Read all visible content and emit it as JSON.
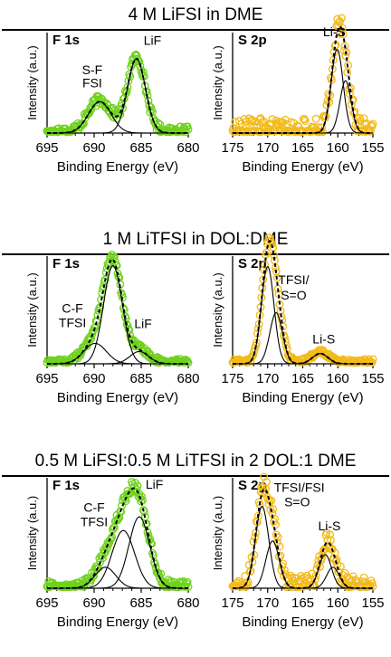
{
  "colors": {
    "f1s_marker": "#6fd21e",
    "s2p_marker": "#f2bb1b",
    "component_line": "#000000",
    "fit_line": "#000000",
    "fit_highlight": "#c6f2a0"
  },
  "axis_common": {
    "xlabel": "Binding Energy (eV)",
    "ylabel": "Intensity (a.u.)"
  },
  "chart_data": [
    {
      "type": "line",
      "section_title": "4 M LiFSI in DME",
      "title": "F 1s",
      "xlabel": "Binding Energy (eV)",
      "ylabel": "Intensity (a.u.)",
      "xlim": [
        695,
        680
      ],
      "x_reversed": true,
      "xticks": [
        "695",
        "690",
        "685",
        "680"
      ],
      "marker_color": "#6fd21e",
      "components": [
        {
          "center": 689.4,
          "height": 0.33,
          "width": 1.2
        },
        {
          "center": 685.5,
          "height": 0.78,
          "width": 0.95
        }
      ],
      "noise": 0.05,
      "annotations": [
        {
          "text": "LiF",
          "x": 683.8,
          "y": 0.93
        },
        {
          "text": "S-F",
          "x": 690.2,
          "y": 0.62
        },
        {
          "text": "FSI",
          "x": 690.2,
          "y": 0.48
        }
      ]
    },
    {
      "type": "line",
      "section_title": "",
      "title": "S 2p",
      "xlabel": "Binding Energy (eV)",
      "ylabel": "Intensity (a.u.)",
      "xlim": [
        175,
        155
      ],
      "x_reversed": true,
      "xticks": [
        "175",
        "170",
        "165",
        "160",
        "155"
      ],
      "marker_color": "#f2bb1b",
      "components": [
        {
          "center": 160.1,
          "height": 0.88,
          "width": 0.85
        },
        {
          "center": 158.9,
          "height": 0.55,
          "width": 0.8
        }
      ],
      "noise": 0.14,
      "annotations": [
        {
          "text": "Li-S",
          "x": 160.5,
          "y": 1.02
        }
      ]
    },
    {
      "type": "line",
      "section_title": "1 M LiTFSI in DOL:DME",
      "title": "F 1s",
      "xlabel": "Binding Energy (eV)",
      "ylabel": "Intensity (a.u.)",
      "xlim": [
        695,
        680
      ],
      "x_reversed": true,
      "xticks": [
        "695",
        "690",
        "685",
        "680"
      ],
      "marker_color": "#6fd21e",
      "components": [
        {
          "center": 688.0,
          "height": 0.96,
          "width": 1.0
        },
        {
          "center": 689.9,
          "height": 0.2,
          "width": 1.2
        },
        {
          "center": 685.2,
          "height": 0.12,
          "width": 1.0
        }
      ],
      "noise": 0.03,
      "annotations": [
        {
          "text": "C-F",
          "x": 692.3,
          "y": 0.5
        },
        {
          "text": "TFSI",
          "x": 692.3,
          "y": 0.36
        },
        {
          "text": "LiF",
          "x": 684.8,
          "y": 0.35
        }
      ]
    },
    {
      "type": "line",
      "section_title": "",
      "title": "S 2p",
      "xlabel": "Binding Energy (eV)",
      "ylabel": "Intensity (a.u.)",
      "xlim": [
        175,
        155
      ],
      "x_reversed": true,
      "xticks": [
        "175",
        "170",
        "165",
        "160",
        "155"
      ],
      "marker_color": "#f2bb1b",
      "components": [
        {
          "center": 170.0,
          "height": 0.95,
          "width": 0.9
        },
        {
          "center": 168.8,
          "height": 0.5,
          "width": 0.9
        },
        {
          "center": 162.5,
          "height": 0.1,
          "width": 1.1
        }
      ],
      "noise": 0.025,
      "annotations": [
        {
          "text": "TFSI/",
          "x": 166.3,
          "y": 0.78
        },
        {
          "text": "S=O",
          "x": 166.3,
          "y": 0.63
        },
        {
          "text": "Li-S",
          "x": 162.0,
          "y": 0.2
        }
      ]
    },
    {
      "type": "line",
      "section_title": "0.5 M LiFSI:0.5 M LiTFSI in 2 DOL:1 DME",
      "title": "F 1s",
      "xlabel": "Binding Energy (eV)",
      "ylabel": "Intensity (a.u.)",
      "xlim": [
        695,
        680
      ],
      "x_reversed": true,
      "xticks": [
        "695",
        "690",
        "685",
        "680"
      ],
      "marker_color": "#6fd21e",
      "components": [
        {
          "center": 685.2,
          "height": 0.68,
          "width": 1.1
        },
        {
          "center": 686.9,
          "height": 0.55,
          "width": 1.2
        },
        {
          "center": 688.8,
          "height": 0.2,
          "width": 1.1
        }
      ],
      "noise": 0.05,
      "annotations": [
        {
          "text": "LiF",
          "x": 683.6,
          "y": 0.95
        },
        {
          "text": "C-F",
          "x": 690.0,
          "y": 0.73
        },
        {
          "text": "TFSI",
          "x": 690.0,
          "y": 0.59
        }
      ]
    },
    {
      "type": "line",
      "section_title": "",
      "title": "S 2p",
      "xlabel": "Binding Energy (eV)",
      "ylabel": "Intensity (a.u.)",
      "xlim": [
        175,
        155
      ],
      "x_reversed": true,
      "xticks": [
        "175",
        "170",
        "165",
        "160",
        "155"
      ],
      "marker_color": "#f2bb1b",
      "components": [
        {
          "center": 170.8,
          "height": 0.78,
          "width": 0.95
        },
        {
          "center": 169.3,
          "height": 0.45,
          "width": 0.95
        },
        {
          "center": 161.8,
          "height": 0.32,
          "width": 0.9
        },
        {
          "center": 160.7,
          "height": 0.2,
          "width": 0.9
        }
      ],
      "noise": 0.1,
      "annotations": [
        {
          "text": "TFSI/FSI",
          "x": 165.5,
          "y": 0.92
        },
        {
          "text": "S=O",
          "x": 165.8,
          "y": 0.78
        },
        {
          "text": "Li-S",
          "x": 161.2,
          "y": 0.55
        }
      ]
    }
  ]
}
